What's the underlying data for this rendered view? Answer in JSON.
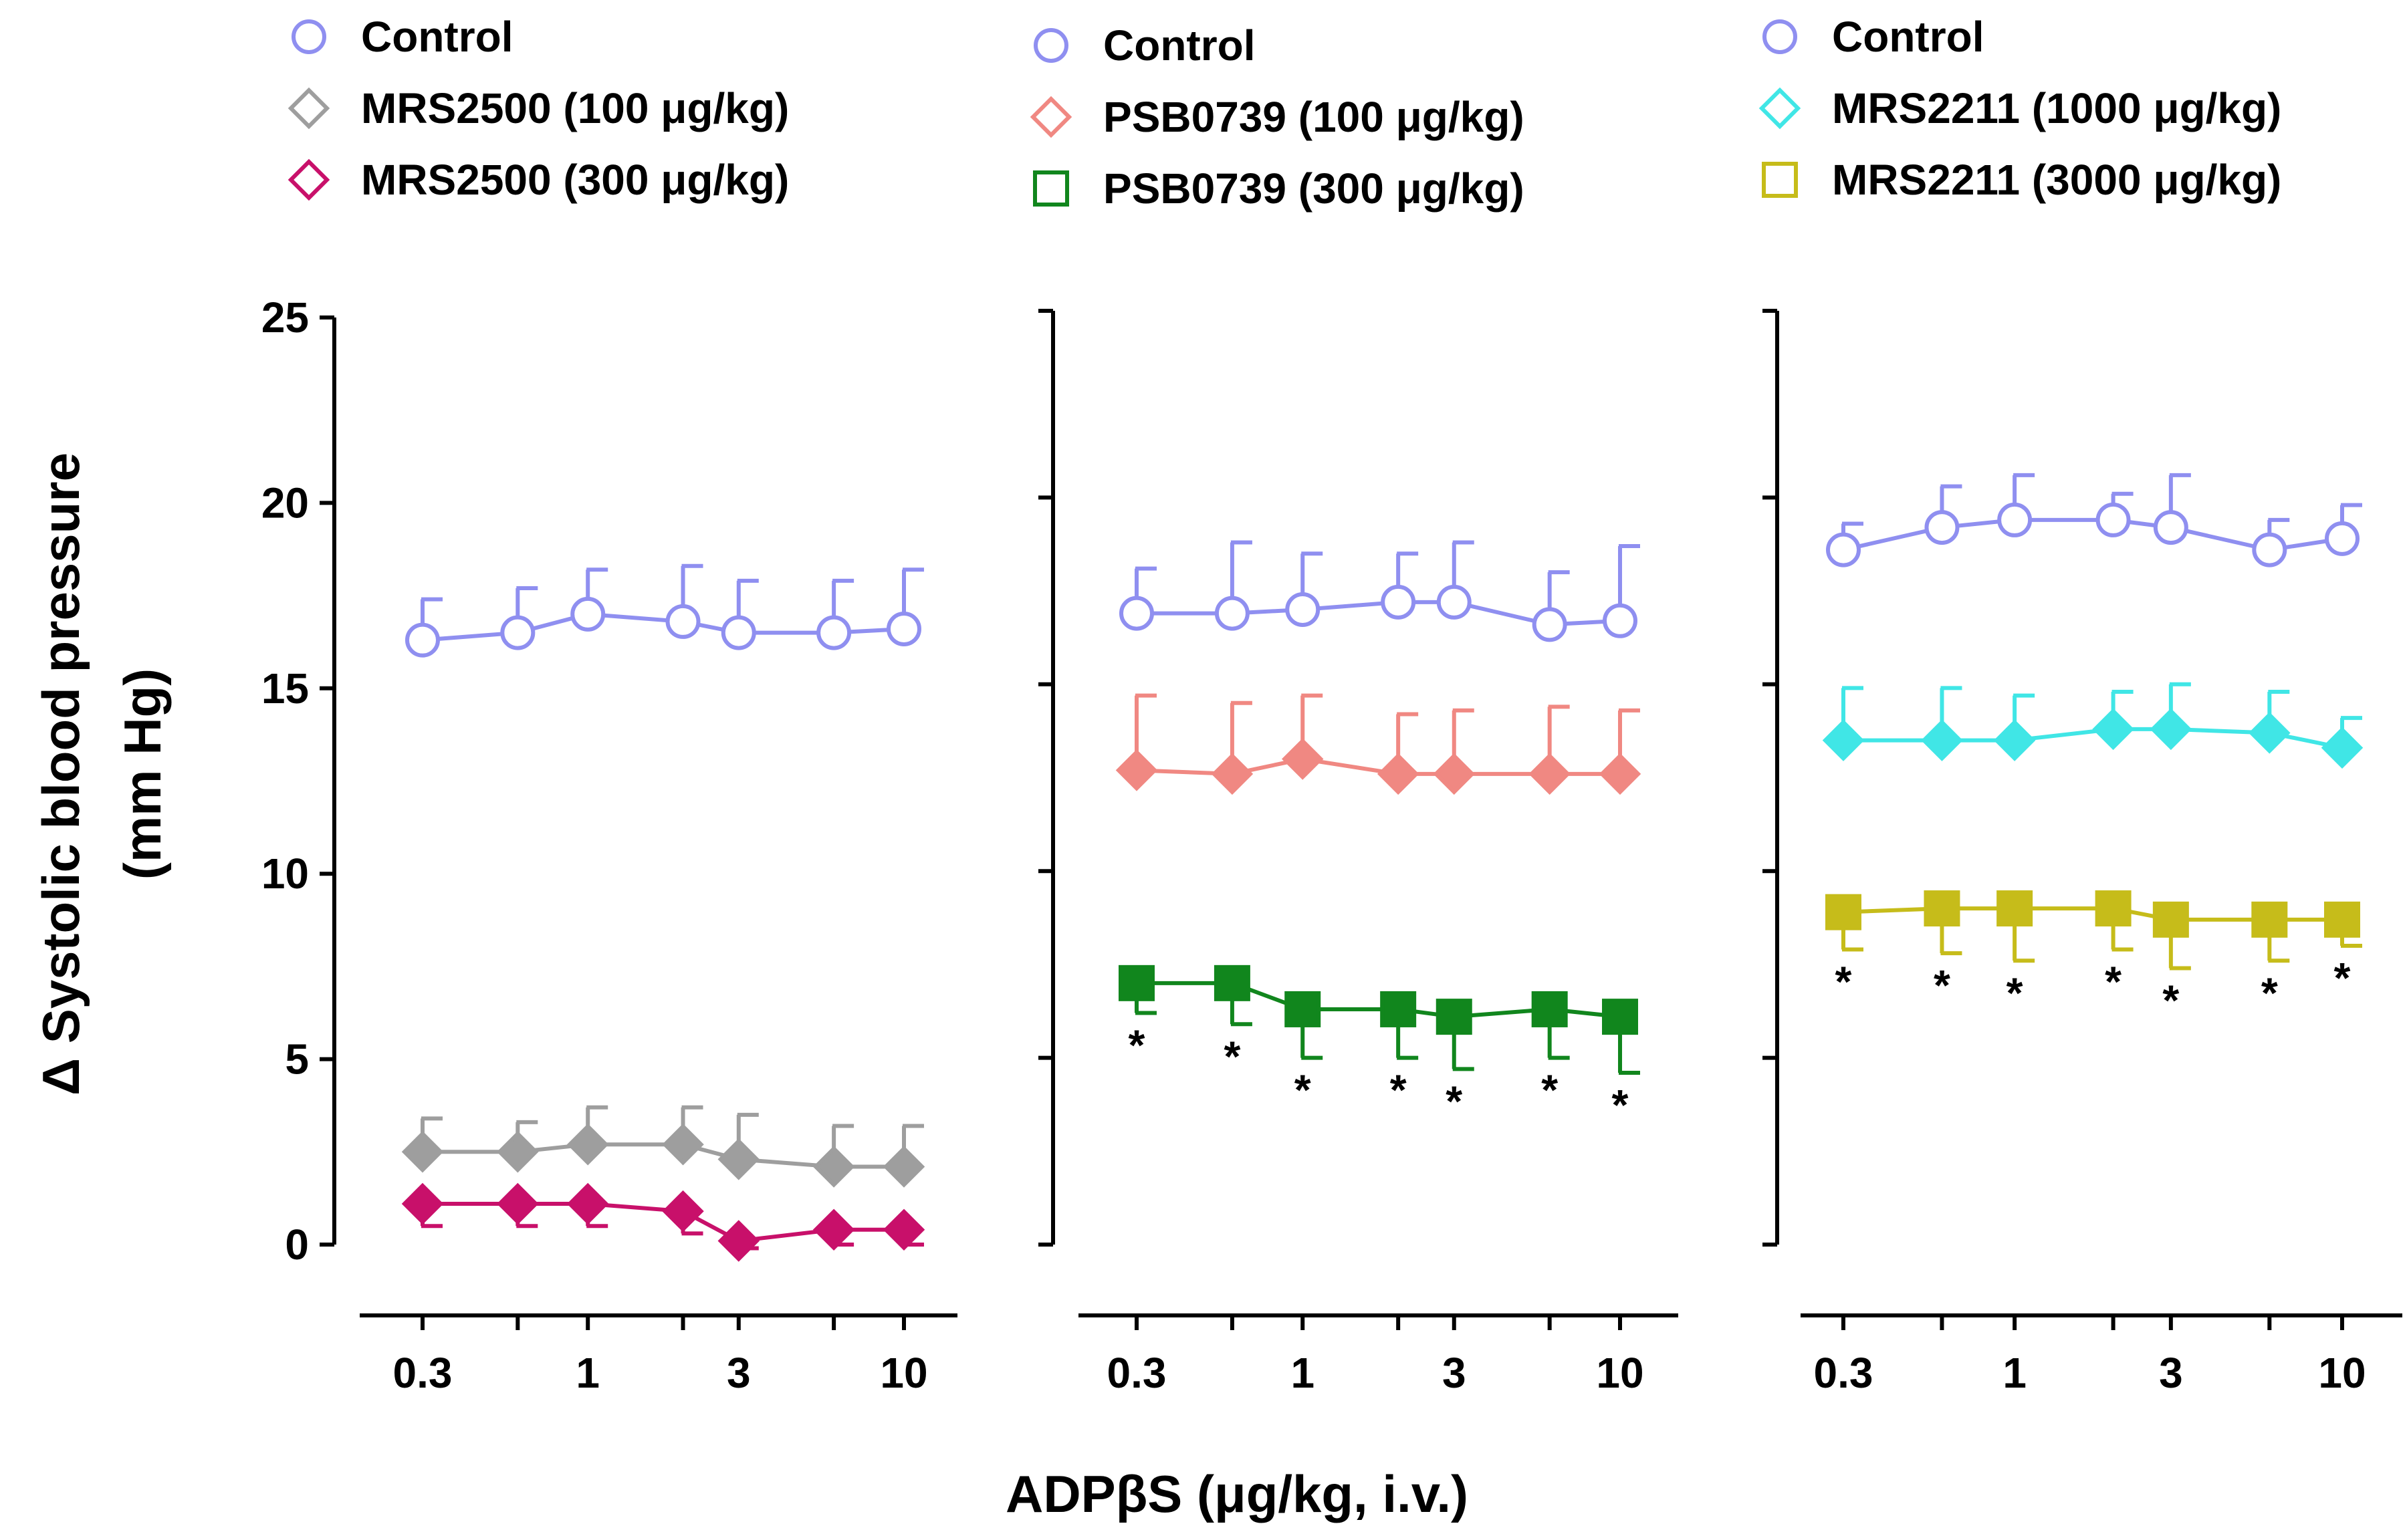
{
  "chart_data": {
    "type": "line",
    "ylabel_line1": "Δ Systolic blood pressure",
    "ylabel_line2": "(mm Hg)",
    "xlabel": "ADPβS (μg/kg, i.v.)",
    "ylim": [
      0,
      25
    ],
    "yticks": [
      0,
      5,
      10,
      15,
      20,
      25
    ],
    "x": [
      0.3,
      0.6,
      1,
      2,
      3,
      6,
      10
    ],
    "xticks": [
      0.3,
      1,
      3,
      10
    ],
    "xtick_labels": [
      "0.3",
      "1",
      "3",
      "10"
    ],
    "significance_marker": "*",
    "panels": [
      {
        "name": "MRS2500",
        "series": [
          {
            "name": "Control",
            "color": "#8f8ff0",
            "marker": "circle",
            "filled": false,
            "values": [
              16.3,
              16.5,
              17.0,
              16.8,
              16.5,
              16.5,
              16.6
            ],
            "errors": [
              1.1,
              1.2,
              1.2,
              1.5,
              1.4,
              1.4,
              1.6
            ],
            "err_dir": "up",
            "sig": []
          },
          {
            "name": "MRS2500 (100 μg/kg)",
            "color": "#9e9e9e",
            "marker": "diamond",
            "filled": true,
            "values": [
              2.5,
              2.5,
              2.7,
              2.7,
              2.3,
              2.1,
              2.1
            ],
            "errors": [
              0.9,
              0.8,
              1.0,
              1.0,
              1.2,
              1.1,
              1.1
            ],
            "err_dir": "up",
            "sig": []
          },
          {
            "name": "MRS2500 (300 μg/kg)",
            "color": "#c8106a",
            "marker": "diamond",
            "filled": true,
            "values": [
              1.1,
              1.1,
              1.1,
              0.9,
              0.1,
              0.4,
              0.4
            ],
            "errors": [
              0.6,
              0.6,
              0.6,
              0.6,
              0.2,
              0.4,
              0.4
            ],
            "err_dir": "down",
            "sig": []
          }
        ]
      },
      {
        "name": "PSB0739",
        "series": [
          {
            "name": "Control",
            "color": "#8f8ff0",
            "marker": "circle",
            "filled": false,
            "values": [
              16.9,
              16.9,
              17.0,
              17.2,
              17.2,
              16.6,
              16.7
            ],
            "errors": [
              1.2,
              1.9,
              1.5,
              1.3,
              1.6,
              1.4,
              2.0
            ],
            "err_dir": "up",
            "sig": []
          },
          {
            "name": "PSB0739 (100 μg/kg)",
            "color": "#f08882",
            "marker": "diamond",
            "filled": true,
            "values": [
              12.7,
              12.6,
              13.0,
              12.6,
              12.6,
              12.6,
              12.6
            ],
            "errors": [
              2.0,
              1.9,
              1.7,
              1.6,
              1.7,
              1.8,
              1.7
            ],
            "err_dir": "up",
            "sig": []
          },
          {
            "name": "PSB0739 (300 μg/kg)",
            "color": "#11861d",
            "marker": "square",
            "filled": true,
            "values": [
              7.0,
              7.0,
              6.3,
              6.3,
              6.1,
              6.3,
              6.1
            ],
            "errors": [
              0.8,
              1.1,
              1.3,
              1.3,
              1.4,
              1.3,
              1.5
            ],
            "err_dir": "down",
            "sig": [
              0,
              1,
              2,
              3,
              4,
              5,
              6
            ]
          }
        ]
      },
      {
        "name": "MRS2211",
        "series": [
          {
            "name": "Control",
            "color": "#8f8ff0",
            "marker": "circle",
            "filled": false,
            "values": [
              18.6,
              19.2,
              19.4,
              19.4,
              19.2,
              18.6,
              18.9
            ],
            "errors": [
              0.7,
              1.1,
              1.2,
              0.7,
              1.4,
              0.8,
              0.9
            ],
            "err_dir": "up",
            "sig": []
          },
          {
            "name": "MRS2211 (1000 μg/kg)",
            "color": "#40e6e6",
            "marker": "diamond",
            "filled": true,
            "values": [
              13.5,
              13.5,
              13.5,
              13.8,
              13.8,
              13.7,
              13.3
            ],
            "errors": [
              1.4,
              1.4,
              1.2,
              1.0,
              1.2,
              1.1,
              0.8
            ],
            "err_dir": "up",
            "sig": []
          },
          {
            "name": "MRS2211 (3000 μg/kg)",
            "color": "#c6bc1a",
            "marker": "square",
            "filled": true,
            "values": [
              8.9,
              9.0,
              9.0,
              9.0,
              8.7,
              8.7,
              8.7
            ],
            "errors": [
              1.0,
              1.2,
              1.4,
              1.1,
              1.3,
              1.1,
              0.7
            ],
            "err_dir": "down",
            "sig": [
              0,
              1,
              2,
              3,
              4,
              5,
              6
            ]
          }
        ]
      }
    ]
  }
}
